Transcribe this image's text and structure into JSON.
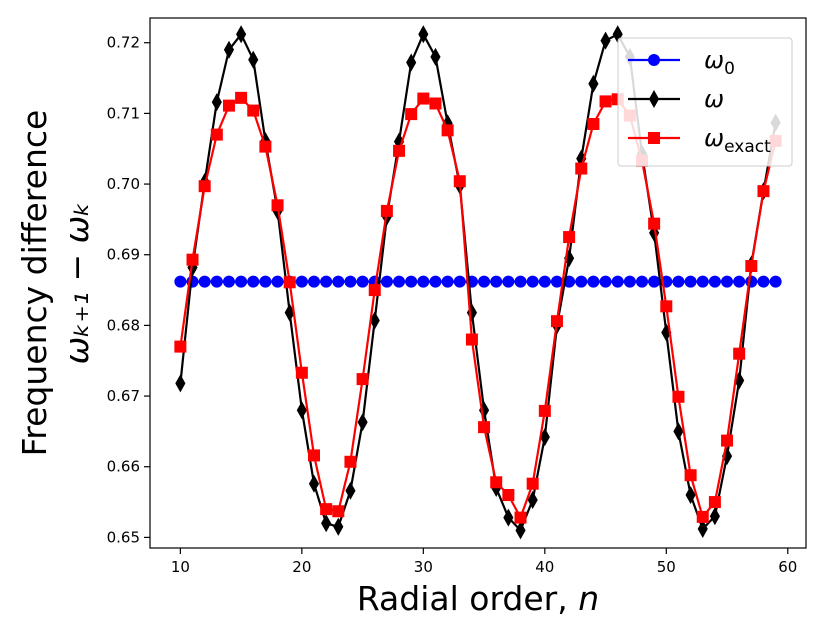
{
  "chart_data": {
    "type": "line",
    "xlabel": "Radial order, n",
    "ylabel_line1": "Frequency difference",
    "ylabel_line2": "ω_{k+1} − ω_k",
    "xlim": [
      7.5,
      61.5
    ],
    "ylim": [
      0.6485,
      0.7235
    ],
    "xticks": [
      10,
      20,
      30,
      40,
      50,
      60
    ],
    "yticks": [
      0.65,
      0.66,
      0.67,
      0.68,
      0.69,
      0.7,
      0.71,
      0.72
    ],
    "grid": false,
    "legend_position": "top-right",
    "x": [
      10,
      11,
      12,
      13,
      14,
      15,
      16,
      17,
      18,
      19,
      20,
      21,
      22,
      23,
      24,
      25,
      26,
      27,
      28,
      29,
      30,
      31,
      32,
      33,
      34,
      35,
      36,
      37,
      38,
      39,
      40,
      41,
      42,
      43,
      44,
      45,
      46,
      47,
      48,
      49,
      50,
      51,
      52,
      53,
      54,
      55,
      56,
      57,
      58,
      59
    ],
    "series": [
      {
        "name": "ω0",
        "legend_label_main": "ω",
        "legend_label_sub": "0",
        "color": "#0000ff",
        "marker": "circle",
        "values": [
          0.6862,
          0.6862,
          0.6862,
          0.6862,
          0.6862,
          0.6862,
          0.6862,
          0.6862,
          0.6862,
          0.6862,
          0.6862,
          0.6862,
          0.6862,
          0.6862,
          0.6862,
          0.6862,
          0.6862,
          0.6862,
          0.6862,
          0.6862,
          0.6862,
          0.6862,
          0.6862,
          0.6862,
          0.6862,
          0.6862,
          0.6862,
          0.6862,
          0.6862,
          0.6862,
          0.6862,
          0.6862,
          0.6862,
          0.6862,
          0.6862,
          0.6862,
          0.6862,
          0.6862,
          0.6862,
          0.6862,
          0.6862,
          0.6862,
          0.6862,
          0.6862,
          0.6862,
          0.6862,
          0.6862,
          0.6862,
          0.6862,
          0.6862
        ]
      },
      {
        "name": "ω",
        "legend_label_main": "ω",
        "legend_label_sub": "",
        "color": "#000000",
        "marker": "diamond",
        "values": [
          0.6718,
          0.6882,
          0.7003,
          0.7116,
          0.719,
          0.7212,
          0.7176,
          0.7061,
          0.6962,
          0.6818,
          0.668,
          0.6576,
          0.652,
          0.6515,
          0.6566,
          0.6663,
          0.6807,
          0.6954,
          0.706,
          0.7172,
          0.7212,
          0.718,
          0.7086,
          0.6998,
          0.6818,
          0.668,
          0.657,
          0.6528,
          0.651,
          0.6553,
          0.6642,
          0.68,
          0.6895,
          0.7036,
          0.7142,
          0.7203,
          0.7212,
          0.718,
          0.7043,
          0.6931,
          0.679,
          0.665,
          0.656,
          0.6512,
          0.653,
          0.6615,
          0.6722,
          0.6886,
          0.699,
          0.7087
        ]
      },
      {
        "name": "ωexact",
        "legend_label_main": "ω",
        "legend_label_sub": "exact",
        "color": "#ff0000",
        "marker": "square",
        "values": [
          0.677,
          0.6893,
          0.6997,
          0.707,
          0.7111,
          0.7122,
          0.7104,
          0.7053,
          0.697,
          0.6861,
          0.6733,
          0.6616,
          0.654,
          0.6537,
          0.6607,
          0.6724,
          0.685,
          0.6962,
          0.7047,
          0.7099,
          0.7121,
          0.7114,
          0.7076,
          0.7004,
          0.678,
          0.6656,
          0.6578,
          0.656,
          0.6528,
          0.6576,
          0.6679,
          0.6806,
          0.6925,
          0.7022,
          0.7085,
          0.7117,
          0.712,
          0.7097,
          0.7033,
          0.6944,
          0.6827,
          0.6699,
          0.6588,
          0.6529,
          0.655,
          0.6637,
          0.676,
          0.6884,
          0.699,
          0.7061
        ]
      }
    ]
  }
}
